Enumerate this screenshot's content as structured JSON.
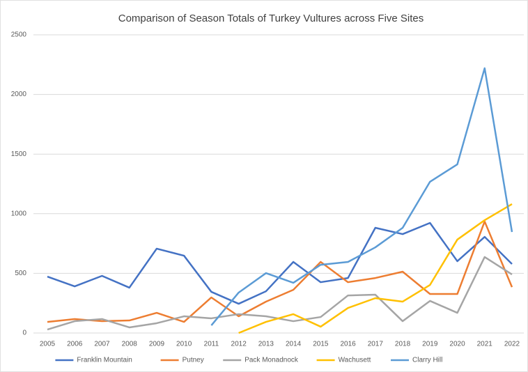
{
  "chart_data": {
    "type": "line",
    "title": "Comparison of Season Totals of Turkey Vultures across Five Sites",
    "categories": [
      "2005",
      "2006",
      "2007",
      "2008",
      "2009",
      "2010",
      "2011",
      "2012",
      "2013",
      "2014",
      "2015",
      "2016",
      "2017",
      "2018",
      "2019",
      "2020",
      "2021",
      "2022"
    ],
    "series": [
      {
        "name": "Franklin Mountain",
        "color": "#4472c4",
        "values": [
          473,
          391,
          479,
          380,
          707,
          648,
          345,
          245,
          350,
          596,
          426,
          461,
          882,
          829,
          923,
          602,
          806,
          578
        ]
      },
      {
        "name": "Putney",
        "color": "#ed7d31",
        "values": [
          93,
          117,
          99,
          105,
          169,
          93,
          298,
          140,
          263,
          362,
          596,
          426,
          461,
          514,
          327,
          327,
          935,
          385
        ]
      },
      {
        "name": "Pack Monadnock",
        "color": "#a5a5a5",
        "values": [
          29,
          99,
          117,
          47,
          82,
          140,
          123,
          158,
          140,
          99,
          134,
          315,
          321,
          99,
          269,
          169,
          637,
          491
        ]
      },
      {
        "name": "Wachusett",
        "color": "#ffc000",
        "values": [
          null,
          null,
          null,
          null,
          null,
          null,
          null,
          0,
          93,
          158,
          53,
          210,
          292,
          263,
          403,
          783,
          946,
          1081
        ]
      },
      {
        "name": "Clarry Hill",
        "color": "#5b9bd5",
        "values": [
          null,
          null,
          null,
          null,
          null,
          null,
          64,
          339,
          502,
          421,
          572,
          596,
          718,
          882,
          1268,
          1414,
          2220,
          847
        ]
      }
    ],
    "ylim": [
      0,
      2500
    ],
    "yticks": [
      0,
      500,
      1000,
      1500,
      2000,
      2500
    ],
    "grid": true,
    "legend": "bottom"
  }
}
